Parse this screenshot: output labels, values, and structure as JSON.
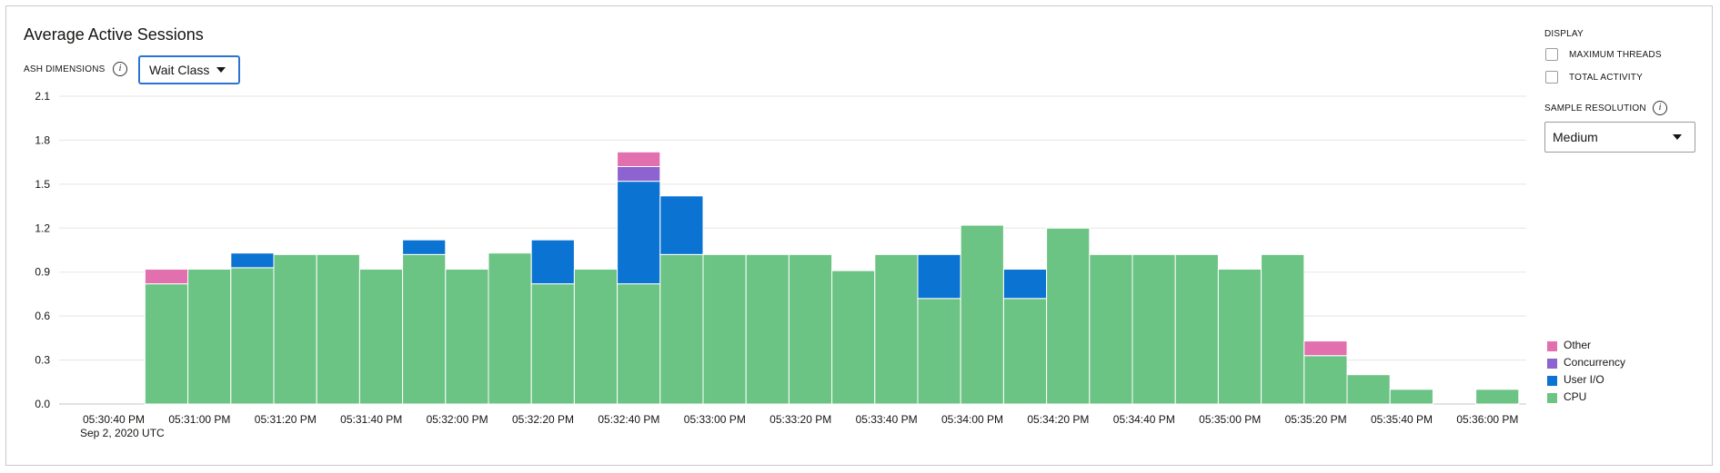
{
  "header": {
    "title": "Average Active Sessions",
    "dimensions_label": "ASH DIMENSIONS",
    "dimension_value": "Wait Class"
  },
  "sidebar": {
    "display_label": "DISPLAY",
    "options": [
      {
        "label": "MAXIMUM THREADS",
        "checked": false
      },
      {
        "label": "TOTAL ACTIVITY",
        "checked": false
      }
    ],
    "resolution_label": "SAMPLE RESOLUTION",
    "resolution_value": "Medium"
  },
  "chart_data": {
    "type": "bar",
    "stacked": true,
    "title": "Average Active Sessions",
    "ylim": [
      0,
      2.1
    ],
    "yticks": [
      "0.0",
      "0.3",
      "0.6",
      "0.9",
      "1.2",
      "1.5",
      "1.8",
      "2.1"
    ],
    "xtick_labels": [
      "05:30:40 PM",
      "05:31:00 PM",
      "05:31:20 PM",
      "05:31:40 PM",
      "05:32:00 PM",
      "05:32:20 PM",
      "05:32:40 PM",
      "05:33:00 PM",
      "05:33:20 PM",
      "05:33:40 PM",
      "05:34:00 PM",
      "05:34:20 PM",
      "05:34:40 PM",
      "05:35:00 PM",
      "05:35:20 PM",
      "05:35:40 PM",
      "05:36:00 PM"
    ],
    "xtick_sublabel": "Sep 2, 2020 UTC",
    "grid": true,
    "legend_position": "bottom-right",
    "colors": {
      "CPU": "#6bc384",
      "User I/O": "#0b73d2",
      "Concurrency": "#8c63d0",
      "Other": "#e26fae"
    },
    "series": [
      {
        "name": "CPU",
        "values": [
          0,
          0,
          0.82,
          0.92,
          0.93,
          1.02,
          1.02,
          0.92,
          1.02,
          0.92,
          1.03,
          0.82,
          0.92,
          0.82,
          1.02,
          1.02,
          1.02,
          1.02,
          0.91,
          1.02,
          0.72,
          1.22,
          0.72,
          1.2,
          1.02,
          1.02,
          1.02,
          0.92,
          1.02,
          0.33,
          0.2,
          0.1,
          0,
          0.1
        ]
      },
      {
        "name": "User I/O",
        "values": [
          0,
          0,
          0,
          0,
          0.1,
          0,
          0,
          0,
          0.1,
          0,
          0,
          0.3,
          0,
          0.7,
          0.4,
          0,
          0,
          0,
          0,
          0,
          0.3,
          0,
          0.2,
          0,
          0,
          0,
          0,
          0,
          0,
          0,
          0,
          0,
          0,
          0
        ]
      },
      {
        "name": "Concurrency",
        "values": [
          0,
          0,
          0,
          0,
          0,
          0,
          0,
          0,
          0,
          0,
          0,
          0,
          0,
          0.1,
          0,
          0,
          0,
          0,
          0,
          0,
          0,
          0,
          0,
          0,
          0,
          0,
          0,
          0,
          0,
          0,
          0,
          0,
          0,
          0
        ]
      },
      {
        "name": "Other",
        "values": [
          0,
          0,
          0.1,
          0,
          0,
          0,
          0,
          0,
          0,
          0,
          0,
          0,
          0,
          0.1,
          0,
          0,
          0,
          0,
          0,
          0,
          0,
          0,
          0,
          0,
          0,
          0,
          0,
          0,
          0,
          0.1,
          0,
          0,
          0,
          0
        ]
      }
    ],
    "legend": [
      "Other",
      "Concurrency",
      "User I/O",
      "CPU"
    ]
  }
}
